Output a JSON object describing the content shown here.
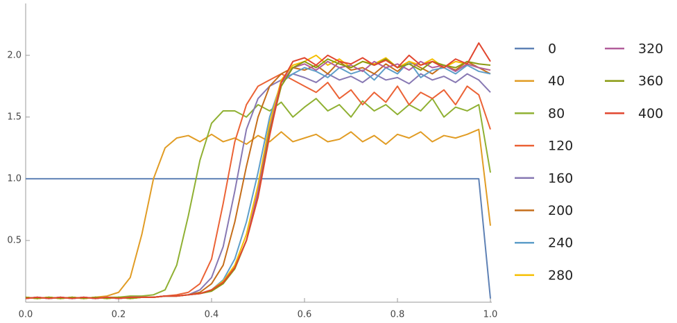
{
  "chart_data": {
    "type": "line",
    "x": [
      0,
      0.025,
      0.05,
      0.075,
      0.1,
      0.125,
      0.15,
      0.175,
      0.2,
      0.225,
      0.25,
      0.275,
      0.3,
      0.325,
      0.35,
      0.375,
      0.4,
      0.425,
      0.45,
      0.475,
      0.5,
      0.525,
      0.55,
      0.575,
      0.6,
      0.625,
      0.65,
      0.675,
      0.7,
      0.725,
      0.75,
      0.775,
      0.8,
      0.825,
      0.85,
      0.875,
      0.9,
      0.925,
      0.95,
      0.975,
      1
    ],
    "xlim": [
      0,
      1
    ],
    "xticks": [
      {
        "value": 0,
        "label": "0.0"
      },
      0.2,
      0.4,
      0.6,
      0.8,
      {
        "value": 1,
        "label": "1.0"
      }
    ],
    "ylim": [
      0,
      2.42
    ],
    "yticks": [
      0.5,
      {
        "value": 1,
        "label": "1.0"
      },
      1.5,
      {
        "value": 2,
        "label": "2.0"
      }
    ],
    "grid": false,
    "legend": "right",
    "series": [
      {
        "name": "0",
        "color": "#5e81b5",
        "values": [
          1,
          1,
          1,
          1,
          1,
          1,
          1,
          1,
          1,
          1,
          1,
          1,
          1,
          1,
          1,
          1,
          1,
          1,
          1,
          1,
          1,
          1,
          1,
          1,
          1,
          1,
          1,
          1,
          1,
          1,
          1,
          1,
          1,
          1,
          1,
          1,
          1,
          1,
          1,
          1,
          0.03
        ]
      },
      {
        "name": "40",
        "color": "#e19c24",
        "values": [
          0.04,
          0.03,
          0.04,
          0.03,
          0.04,
          0.03,
          0.04,
          0.05,
          0.08,
          0.2,
          0.55,
          1.0,
          1.25,
          1.33,
          1.35,
          1.3,
          1.36,
          1.3,
          1.33,
          1.28,
          1.35,
          1.3,
          1.38,
          1.3,
          1.33,
          1.36,
          1.3,
          1.32,
          1.38,
          1.3,
          1.35,
          1.28,
          1.36,
          1.33,
          1.38,
          1.3,
          1.35,
          1.33,
          1.36,
          1.4,
          0.62
        ]
      },
      {
        "name": "80",
        "color": "#8fb032",
        "values": [
          0.03,
          0.04,
          0.03,
          0.04,
          0.03,
          0.04,
          0.03,
          0.04,
          0.04,
          0.05,
          0.05,
          0.06,
          0.1,
          0.3,
          0.7,
          1.15,
          1.45,
          1.55,
          1.55,
          1.5,
          1.6,
          1.55,
          1.62,
          1.5,
          1.58,
          1.65,
          1.55,
          1.6,
          1.5,
          1.63,
          1.55,
          1.6,
          1.52,
          1.6,
          1.55,
          1.65,
          1.5,
          1.58,
          1.55,
          1.6,
          1.05
        ]
      },
      {
        "name": "120",
        "color": "#eb6235",
        "values": [
          0.04,
          0.03,
          0.04,
          0.03,
          0.04,
          0.03,
          0.04,
          0.03,
          0.04,
          0.03,
          0.04,
          0.04,
          0.05,
          0.06,
          0.08,
          0.15,
          0.35,
          0.8,
          1.3,
          1.6,
          1.75,
          1.8,
          1.85,
          1.8,
          1.75,
          1.7,
          1.78,
          1.65,
          1.72,
          1.6,
          1.7,
          1.62,
          1.75,
          1.6,
          1.7,
          1.65,
          1.72,
          1.6,
          1.75,
          1.68,
          1.4
        ]
      },
      {
        "name": "160",
        "color": "#8778b3",
        "values": [
          0.03,
          0.04,
          0.03,
          0.04,
          0.03,
          0.04,
          0.03,
          0.04,
          0.03,
          0.04,
          0.04,
          0.04,
          0.05,
          0.05,
          0.06,
          0.1,
          0.2,
          0.45,
          0.9,
          1.4,
          1.65,
          1.75,
          1.8,
          1.85,
          1.82,
          1.78,
          1.85,
          1.8,
          1.83,
          1.78,
          1.85,
          1.8,
          1.82,
          1.77,
          1.85,
          1.8,
          1.83,
          1.78,
          1.85,
          1.8,
          1.7
        ]
      },
      {
        "name": "200",
        "color": "#c56e1a",
        "values": [
          0.04,
          0.03,
          0.04,
          0.03,
          0.04,
          0.03,
          0.04,
          0.03,
          0.04,
          0.03,
          0.04,
          0.04,
          0.05,
          0.05,
          0.06,
          0.08,
          0.15,
          0.3,
          0.65,
          1.1,
          1.5,
          1.75,
          1.85,
          1.9,
          1.88,
          1.92,
          1.85,
          1.95,
          1.88,
          1.9,
          1.85,
          1.93,
          1.87,
          1.95,
          1.9,
          1.85,
          1.92,
          1.88,
          1.95,
          1.9,
          1.85
        ]
      },
      {
        "name": "240",
        "color": "#5e9ec9",
        "values": [
          0.03,
          0.04,
          0.03,
          0.04,
          0.03,
          0.04,
          0.03,
          0.04,
          0.03,
          0.04,
          0.04,
          0.04,
          0.05,
          0.05,
          0.06,
          0.07,
          0.1,
          0.18,
          0.35,
          0.65,
          1.05,
          1.5,
          1.78,
          1.85,
          1.9,
          1.87,
          1.82,
          1.9,
          1.85,
          1.88,
          1.8,
          1.9,
          1.85,
          1.95,
          1.82,
          1.88,
          1.9,
          1.85,
          1.92,
          1.87,
          1.85
        ]
      },
      {
        "name": "280",
        "color": "#f5bf00",
        "values": [
          0.04,
          0.03,
          0.04,
          0.03,
          0.04,
          0.03,
          0.04,
          0.03,
          0.04,
          0.03,
          0.04,
          0.04,
          0.05,
          0.05,
          0.06,
          0.07,
          0.1,
          0.17,
          0.3,
          0.55,
          0.95,
          1.45,
          1.8,
          1.92,
          1.95,
          2.0,
          1.92,
          1.97,
          1.9,
          1.95,
          1.93,
          1.98,
          1.9,
          1.95,
          1.92,
          1.97,
          1.9,
          1.95,
          1.93,
          1.9,
          1.88
        ]
      },
      {
        "name": "320",
        "color": "#b15d9b",
        "values": [
          0.03,
          0.04,
          0.03,
          0.04,
          0.03,
          0.04,
          0.03,
          0.04,
          0.03,
          0.04,
          0.04,
          0.04,
          0.05,
          0.05,
          0.06,
          0.07,
          0.09,
          0.16,
          0.28,
          0.5,
          0.9,
          1.4,
          1.78,
          1.9,
          1.93,
          1.88,
          1.95,
          1.9,
          1.92,
          1.87,
          1.95,
          1.9,
          1.93,
          1.88,
          1.95,
          1.9,
          1.92,
          1.87,
          1.93,
          1.9,
          1.88
        ]
      },
      {
        "name": "360",
        "color": "#8a9a12",
        "values": [
          0.04,
          0.03,
          0.04,
          0.03,
          0.04,
          0.03,
          0.04,
          0.03,
          0.04,
          0.03,
          0.04,
          0.04,
          0.05,
          0.05,
          0.06,
          0.07,
          0.09,
          0.15,
          0.27,
          0.5,
          0.85,
          1.38,
          1.75,
          1.9,
          1.95,
          1.9,
          1.97,
          1.93,
          1.9,
          1.95,
          1.92,
          1.97,
          1.9,
          1.93,
          1.88,
          1.95,
          1.92,
          1.9,
          1.95,
          1.93,
          1.92
        ]
      },
      {
        "name": "400",
        "color": "#e1452e",
        "values": [
          0.03,
          0.04,
          0.03,
          0.04,
          0.03,
          0.04,
          0.03,
          0.04,
          0.03,
          0.04,
          0.04,
          0.04,
          0.05,
          0.05,
          0.06,
          0.07,
          0.1,
          0.16,
          0.28,
          0.5,
          0.85,
          1.35,
          1.78,
          1.95,
          1.98,
          1.92,
          2.0,
          1.95,
          1.93,
          1.98,
          1.92,
          1.96,
          1.9,
          2.0,
          1.92,
          1.95,
          1.9,
          1.97,
          1.93,
          2.1,
          1.95
        ]
      }
    ]
  }
}
